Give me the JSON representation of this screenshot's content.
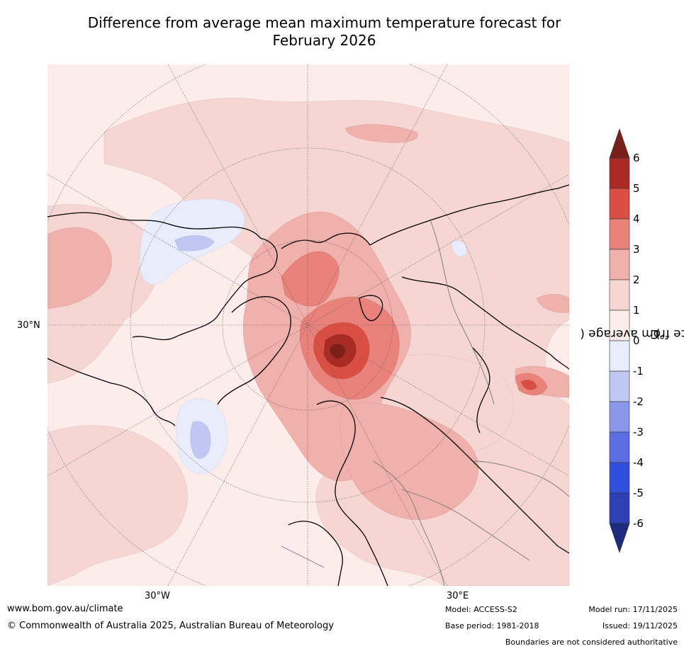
{
  "title": {
    "line1": "Difference from average mean maximum temperature forecast for",
    "line2": "February 2026"
  },
  "map": {
    "projection": "north polar stereographic",
    "lat_label": "30°N",
    "lon_labels": {
      "west": "30°W",
      "east": "30°E"
    }
  },
  "colorbar": {
    "label": "Difference from average (°C)",
    "label_prefix": "Difference from average (",
    "label_unit": "°C",
    "label_suffix": ")",
    "ticks": [
      "6",
      "5",
      "4",
      "3",
      "2",
      "1",
      "0",
      "-1",
      "-2",
      "-3",
      "-4",
      "-5",
      "-6"
    ],
    "colors": {
      "above_6": "#7a1f1a",
      "5_to_6": "#aa2a25",
      "4_to_5": "#d94f43",
      "3_to_4": "#e8827b",
      "2_to_3": "#f0b0ab",
      "1_to_2": "#f5d6d3",
      "0_to_1": "#fcedeb",
      "-1_to_0": "#e8ecfb",
      "-2_to_-1": "#c0c7f2",
      "-3_to_-2": "#8896ea",
      "-4_to_-3": "#5b6de2",
      "-5_to_-4": "#2f4fdc",
      "-6_to_-5": "#2c3fb5",
      "below_-6": "#1c2b80"
    }
  },
  "footer": {
    "url": "www.bom.gov.au/climate",
    "copyright": "© Commonwealth of Australia 2025, Australian Bureau of Meteorology",
    "model": "Model: ACCESS-S2",
    "base_period": "Base period: 1981-2018",
    "model_run": "Model run: 17/11/2025",
    "issued": "Issued: 19/11/2025",
    "disclaimer": "Boundaries are not considered authoritative"
  }
}
